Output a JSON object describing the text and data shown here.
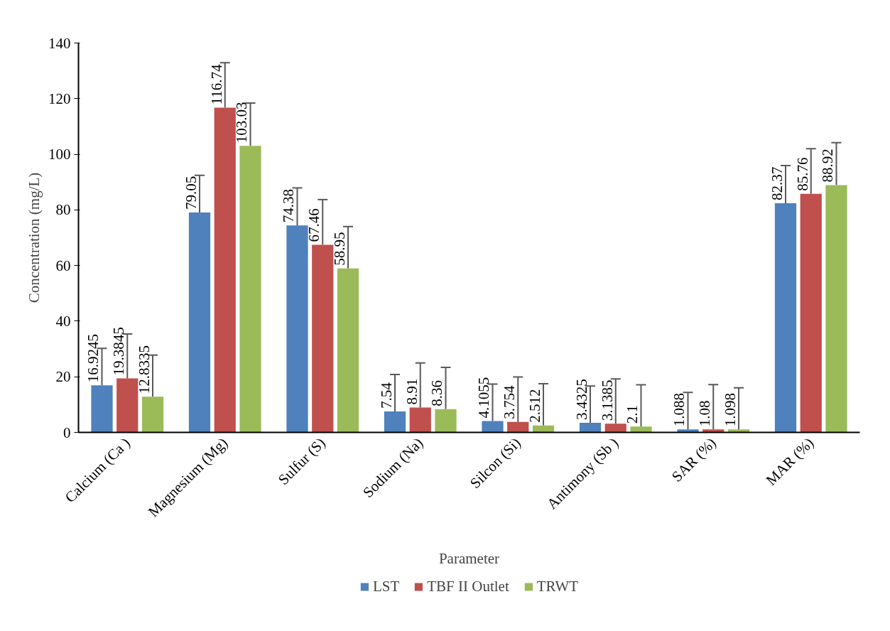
{
  "chart_data": {
    "type": "bar",
    "xlabel": "Parameter",
    "ylabel": "Concentration (mg/L)",
    "categories": [
      "Calcium (Ca )",
      "Magnesium (Mg)",
      "Sulfur (S)",
      "Sodium (Na)",
      "Silcon (Si)",
      "Antimony (Sb )",
      "SAR (%)",
      "MAR (%)"
    ],
    "series": [
      {
        "name": "LST",
        "color": "#4f81bd",
        "values": [
          16.9245,
          79.05,
          74.38,
          7.54,
          4.1055,
          3.4325,
          1.088,
          82.37
        ],
        "errors": [
          [
            16.9245,
            30.2
          ],
          [
            79.05,
            92.4
          ],
          [
            74.38,
            87.9
          ],
          [
            7.54,
            20.8
          ],
          [
            4.1055,
            17.4
          ],
          [
            3.4325,
            16.7
          ],
          [
            1.088,
            14.4
          ],
          [
            82.37,
            95.9
          ]
        ]
      },
      {
        "name": "TBF II Outlet",
        "color": "#c0504d",
        "values": [
          19.3845,
          116.74,
          67.46,
          8.91,
          3.754,
          3.1385,
          1.08,
          85.76
        ],
        "errors": [
          [
            19.3845,
            35.4
          ],
          [
            116.74,
            132.9
          ],
          [
            67.46,
            83.7
          ],
          [
            8.91,
            25.0
          ],
          [
            3.754,
            19.9
          ],
          [
            3.1385,
            19.2
          ],
          [
            1.08,
            17.2
          ],
          [
            85.76,
            102.0
          ]
        ]
      },
      {
        "name": "TRWT",
        "color": "#9bbb59",
        "values": [
          12.8335,
          103.03,
          58.95,
          8.36,
          2.512,
          2.1,
          1.098,
          88.92
        ],
        "errors": [
          [
            12.8335,
            27.8
          ],
          [
            103.03,
            118.4
          ],
          [
            58.95,
            74.0
          ],
          [
            8.36,
            23.4
          ],
          [
            2.512,
            17.5
          ],
          [
            2.1,
            17.1
          ],
          [
            1.098,
            16.0
          ],
          [
            88.92,
            104.2
          ]
        ]
      }
    ],
    "ylim": [
      0,
      140
    ],
    "yticks": [
      0,
      20,
      40,
      60,
      80,
      100,
      120,
      140
    ],
    "data_labels": true,
    "legend": "bottom"
  }
}
